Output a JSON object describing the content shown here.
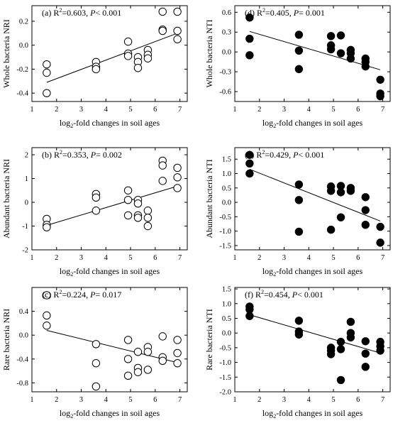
{
  "figure": {
    "panels": [
      {
        "id": "a",
        "ann": {
          "label": "(a)",
          "r2": "0.603",
          "p_prefix": "P",
          "p_rel": "<",
          "p_val": "0.001"
        },
        "ylabel": "Whole bacteria NRI",
        "xlabel": "log2-fold changes in soil ages",
        "marker": "open"
      },
      {
        "id": "d",
        "ann": {
          "label": "(d)",
          "r2": "0.405",
          "p_prefix": "P",
          "p_rel": "=",
          "p_val": "0.001"
        },
        "ylabel": "Whole bacteria NTI",
        "xlabel": "log2-fold changes in soil ages",
        "marker": "filled"
      },
      {
        "id": "b",
        "ann": {
          "label": "(b)",
          "r2": "0.353",
          "p_prefix": "P",
          "p_rel": "=",
          "p_val": "0.002"
        },
        "ylabel": "Abundant bacteria NRI",
        "xlabel": "log2-fold changes in soil ages",
        "marker": "open"
      },
      {
        "id": "e",
        "ann": {
          "label": "(e)",
          "r2": "0.429",
          "p_prefix": "P",
          "p_rel": "<",
          "p_val": "0.001"
        },
        "ylabel": "Abundant bacteria NTI",
        "xlabel": "log2-fold changes in soil ages",
        "marker": "filled"
      },
      {
        "id": "c",
        "ann": {
          "label": "(c)",
          "r2": "0.224",
          "p_prefix": "P",
          "p_rel": "=",
          "p_val": "0.017"
        },
        "ylabel": "Rare bacteria NRI",
        "xlabel": "log2-fold changes in soil ages",
        "marker": "open"
      },
      {
        "id": "f",
        "ann": {
          "label": "(f)",
          "r2": "0.454",
          "p_prefix": "P",
          "p_rel": "<",
          "p_val": "0.001"
        },
        "ylabel": "Rare bacteria NTI",
        "xlabel": "log2-fold changes in soil ages",
        "marker": "filled"
      }
    ]
  },
  "chart_data": [
    {
      "type": "scatter",
      "panel": "a",
      "ylabel": "Whole bacteria NRI",
      "xlabel": "log2-fold changes in soil ages",
      "xlim": [
        1,
        7.3
      ],
      "ylim": [
        -0.47,
        0.33
      ],
      "xticks": [
        1,
        2,
        3,
        4,
        5,
        6,
        7
      ],
      "yticks": [
        -0.4,
        -0.2,
        0.0,
        0.2
      ],
      "ytick_labels": [
        "-0.4",
        "-0.2",
        "0.0",
        "0.2"
      ],
      "marker": "open",
      "points": [
        [
          1.6,
          -0.16
        ],
        [
          1.6,
          -0.23
        ],
        [
          1.6,
          -0.4
        ],
        [
          3.6,
          -0.14
        ],
        [
          3.6,
          -0.18
        ],
        [
          3.6,
          -0.2
        ],
        [
          4.9,
          0.03
        ],
        [
          4.9,
          -0.07
        ],
        [
          4.9,
          -0.09
        ],
        [
          5.3,
          -0.1
        ],
        [
          5.3,
          -0.14
        ],
        [
          5.3,
          -0.19
        ],
        [
          5.7,
          -0.04
        ],
        [
          5.7,
          -0.08
        ],
        [
          5.7,
          -0.11
        ],
        [
          6.3,
          0.28
        ],
        [
          6.3,
          0.13
        ],
        [
          6.3,
          0.12
        ],
        [
          6.9,
          0.28
        ],
        [
          6.9,
          0.12
        ],
        [
          6.9,
          0.05
        ]
      ],
      "trendline": [
        [
          1.6,
          -0.31
        ],
        [
          6.9,
          0.1
        ]
      ]
    },
    {
      "type": "scatter",
      "panel": "d",
      "ylabel": "Whole bacteria NTI",
      "xlabel": "log2-fold changes in soil ages",
      "xlim": [
        1,
        7.3
      ],
      "ylim": [
        -0.75,
        0.7
      ],
      "xticks": [
        1,
        2,
        3,
        4,
        5,
        6,
        7
      ],
      "yticks": [
        -0.6,
        -0.3,
        0.0,
        0.3,
        0.6
      ],
      "ytick_labels": [
        "-0.6",
        "-0.3",
        "0.0",
        "0.3",
        "0.6"
      ],
      "marker": "filled",
      "points": [
        [
          1.6,
          0.52
        ],
        [
          1.6,
          0.2
        ],
        [
          1.6,
          -0.05
        ],
        [
          3.6,
          0.26
        ],
        [
          3.6,
          0.02
        ],
        [
          3.6,
          -0.26
        ],
        [
          4.9,
          0.24
        ],
        [
          4.9,
          0.1
        ],
        [
          4.9,
          0.04
        ],
        [
          5.3,
          0.25
        ],
        [
          5.3,
          -0.02
        ],
        [
          5.7,
          0.03
        ],
        [
          5.7,
          -0.02
        ],
        [
          5.7,
          -0.1
        ],
        [
          6.3,
          -0.1
        ],
        [
          6.3,
          -0.15
        ],
        [
          6.3,
          -0.22
        ],
        [
          6.9,
          -0.42
        ],
        [
          6.9,
          -0.63
        ],
        [
          6.9,
          -0.67
        ]
      ],
      "trendline": [
        [
          1.6,
          0.31
        ],
        [
          6.9,
          -0.27
        ]
      ]
    },
    {
      "type": "scatter",
      "panel": "b",
      "ylabel": "Abundant bacteria NRI",
      "xlabel": "log2-fold changes in soil ages",
      "xlim": [
        1,
        7.3
      ],
      "ylim": [
        -2,
        2.3
      ],
      "xticks": [
        1,
        2,
        3,
        4,
        5,
        6,
        7
      ],
      "yticks": [
        -2,
        -1,
        0,
        1,
        2
      ],
      "ytick_labels": [
        "-2",
        "-1",
        "0",
        "1",
        "2"
      ],
      "marker": "open",
      "points": [
        [
          1.6,
          -0.7
        ],
        [
          1.6,
          -0.95
        ],
        [
          1.6,
          -1.05
        ],
        [
          3.6,
          0.35
        ],
        [
          3.6,
          0.2
        ],
        [
          3.6,
          -0.35
        ],
        [
          4.9,
          0.5
        ],
        [
          4.9,
          0.1
        ],
        [
          4.9,
          -0.55
        ],
        [
          5.3,
          0.1
        ],
        [
          5.3,
          -0.05
        ],
        [
          5.3,
          -0.55
        ],
        [
          5.3,
          -0.65
        ],
        [
          5.7,
          -0.35
        ],
        [
          5.7,
          -0.65
        ],
        [
          5.7,
          -1.0
        ],
        [
          6.3,
          1.75
        ],
        [
          6.3,
          1.55
        ],
        [
          6.3,
          0.9
        ],
        [
          6.9,
          1.45
        ],
        [
          6.9,
          1.05
        ],
        [
          6.9,
          0.6
        ]
      ],
      "trendline": [
        [
          1.6,
          -0.97
        ],
        [
          6.9,
          0.68
        ]
      ]
    },
    {
      "type": "scatter",
      "panel": "e",
      "ylabel": "Abundant bacteria NTI",
      "xlabel": "log2-fold changes in soil ages",
      "xlim": [
        1,
        7.3
      ],
      "ylim": [
        -1.65,
        1.9
      ],
      "xticks": [
        1,
        2,
        3,
        4,
        5,
        6,
        7
      ],
      "yticks": [
        -1.5,
        -1.0,
        -0.5,
        0.0,
        0.5,
        1.0,
        1.5
      ],
      "ytick_labels": [
        "-1.5",
        "-1.0",
        "-0.5",
        "0.0",
        "0.5",
        "1.0",
        "1.5"
      ],
      "marker": "filled",
      "points": [
        [
          1.6,
          1.65
        ],
        [
          1.6,
          1.35
        ],
        [
          1.6,
          1.0
        ],
        [
          3.6,
          0.62
        ],
        [
          3.6,
          0.08
        ],
        [
          3.6,
          -1.02
        ],
        [
          4.9,
          0.55
        ],
        [
          4.9,
          0.4
        ],
        [
          4.9,
          -0.95
        ],
        [
          5.3,
          0.57
        ],
        [
          5.3,
          0.35
        ],
        [
          5.3,
          -0.52
        ],
        [
          5.7,
          0.5
        ],
        [
          5.7,
          0.4
        ],
        [
          6.3,
          0.18
        ],
        [
          6.3,
          -0.27
        ],
        [
          6.3,
          -0.78
        ],
        [
          6.9,
          -0.85
        ],
        [
          6.9,
          -1.4
        ]
      ],
      "trendline": [
        [
          1.6,
          1.15
        ],
        [
          6.9,
          -0.65
        ]
      ]
    },
    {
      "type": "scatter",
      "panel": "c",
      "ylabel": "Rare bacteria NRI",
      "xlabel": "log2-fold changes in soil ages",
      "xlim": [
        1,
        7.3
      ],
      "ylim": [
        -0.95,
        0.8
      ],
      "xticks": [
        1,
        2,
        3,
        4,
        5,
        6,
        7
      ],
      "yticks": [
        -0.8,
        -0.4,
        0.0,
        0.4
      ],
      "ytick_labels": [
        "-0.8",
        "-0.4",
        "0.0",
        "0.4"
      ],
      "marker": "open",
      "points": [
        [
          1.6,
          0.67
        ],
        [
          1.6,
          0.33
        ],
        [
          1.6,
          0.16
        ],
        [
          3.6,
          -0.15
        ],
        [
          3.6,
          -0.47
        ],
        [
          3.6,
          -0.86
        ],
        [
          4.9,
          -0.08
        ],
        [
          4.9,
          -0.4
        ],
        [
          4.9,
          -0.68
        ],
        [
          5.3,
          -0.28
        ],
        [
          5.3,
          -0.55
        ],
        [
          5.3,
          -0.62
        ],
        [
          5.7,
          -0.2
        ],
        [
          5.7,
          -0.28
        ],
        [
          5.7,
          -0.58
        ],
        [
          6.3,
          -0.02
        ],
        [
          6.3,
          -0.37
        ],
        [
          6.3,
          -0.43
        ],
        [
          6.9,
          -0.08
        ],
        [
          6.9,
          -0.3
        ],
        [
          6.9,
          -0.47
        ]
      ],
      "trendline": [
        [
          1.6,
          0.08
        ],
        [
          6.9,
          -0.46
        ]
      ]
    },
    {
      "type": "scatter",
      "panel": "f",
      "ylabel": "Rare bacteria NTI",
      "xlabel": "log2-fold changes in soil ages",
      "xlim": [
        1,
        7.3
      ],
      "ylim": [
        -2,
        1.55
      ],
      "xticks": [
        1,
        2,
        3,
        4,
        5,
        6,
        7
      ],
      "yticks": [
        -2.0,
        -1.5,
        -1.0,
        -0.5,
        0.0,
        0.5,
        1.0,
        1.5
      ],
      "ytick_labels": [
        "-2.0",
        "-1.5",
        "-1.0",
        "-0.5",
        "0.0",
        "0.5",
        "1.0",
        "1.5"
      ],
      "marker": "filled",
      "points": [
        [
          1.6,
          0.9
        ],
        [
          1.6,
          0.8
        ],
        [
          1.6,
          0.58
        ],
        [
          3.6,
          0.42
        ],
        [
          3.6,
          0.05
        ],
        [
          3.6,
          -0.05
        ],
        [
          4.9,
          -0.5
        ],
        [
          4.9,
          -0.6
        ],
        [
          4.9,
          -0.72
        ],
        [
          5.3,
          -0.3
        ],
        [
          5.3,
          -0.55
        ],
        [
          5.3,
          -1.6
        ],
        [
          5.7,
          0.38
        ],
        [
          5.7,
          0.0
        ],
        [
          5.7,
          -0.15
        ],
        [
          6.3,
          -0.28
        ],
        [
          6.3,
          -0.7
        ],
        [
          6.3,
          -1.15
        ],
        [
          6.9,
          -0.3
        ],
        [
          6.9,
          -0.45
        ],
        [
          6.9,
          -0.6
        ]
      ],
      "trendline": [
        [
          1.6,
          0.62
        ],
        [
          6.9,
          -0.68
        ]
      ]
    }
  ]
}
